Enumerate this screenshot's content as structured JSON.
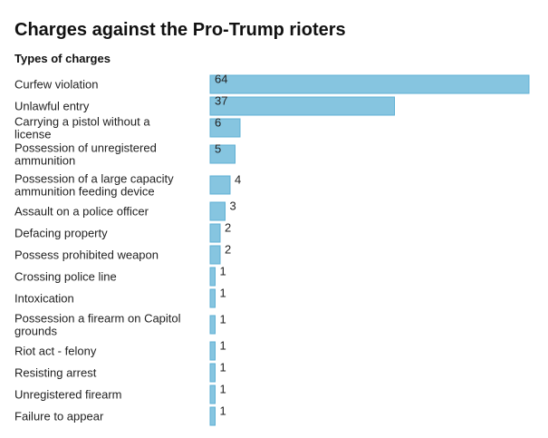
{
  "chart_data": {
    "type": "bar",
    "orientation": "horizontal",
    "title": "Charges against the Pro-Trump rioters",
    "subtitle": "Types of charges",
    "categories": [
      "Curfew violation",
      "Unlawful entry",
      "Carrying a pistol without a license",
      "Possession of unregistered ammunition",
      "Possession of a large capacity ammunition feeding device",
      "Assault on a police officer",
      "Defacing property",
      "Possess prohibited weapon",
      "Crossing police line",
      "Intoxication",
      "Possession a firearm on Capitol grounds",
      "Riot act - felony",
      "Resisting arrest",
      "Unregistered firearm",
      "Failure to appear"
    ],
    "values": [
      64,
      37,
      6,
      5,
      4,
      3,
      2,
      2,
      1,
      1,
      1,
      1,
      1,
      1,
      1
    ],
    "xlim": [
      0,
      64
    ],
    "grid": false,
    "legend": "none",
    "bar_color": "#86c5e0",
    "bar_edge_color": "#5fb0d4"
  }
}
